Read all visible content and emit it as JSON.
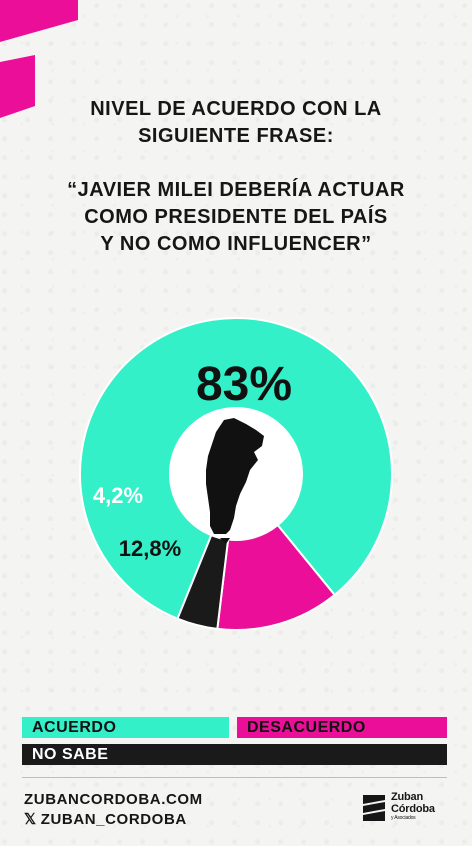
{
  "heading": {
    "line1": "NIVEL DE ACUERDO CON LA",
    "line2": "SIGUIENTE FRASE:"
  },
  "quote": {
    "line1": "“JAVIER MILEI DEBERÍA ACTUAR",
    "line2": "COMO PRESIDENTE DEL PAÍS",
    "line3": "Y NO COMO INFLUENCER”"
  },
  "chart_data": {
    "type": "pie",
    "slices": [
      {
        "label": "ACUERDO",
        "value": 83,
        "display": "83%",
        "color": "#33f0c9"
      },
      {
        "label": "DESACUERDO",
        "value": 12.8,
        "display": "12,8%",
        "color": "#ea0e98"
      },
      {
        "label": "NO SABE",
        "value": 4.2,
        "display": "4,2%",
        "color": "#1a1a1a"
      }
    ],
    "center_icon": "argentina-map-icon",
    "legend_placement": "bottom"
  },
  "legend": {
    "acuerdo": "ACUERDO",
    "desacuerdo": "DESACUERDO",
    "no_sabe": "NO SABE"
  },
  "footer": {
    "website": "ZUBANCORDOBA.COM",
    "x_handle": "ZUBAN_CORDOBA",
    "x_icon": "x-logo-icon"
  },
  "logo": {
    "line1": "Zuban",
    "line2": "Córdoba",
    "line3": "y Asociados"
  },
  "colors": {
    "accent_pink": "#ea0e98",
    "accent_teal": "#33f0c9",
    "dark": "#1a1a1a",
    "background": "#f4f4f2"
  }
}
